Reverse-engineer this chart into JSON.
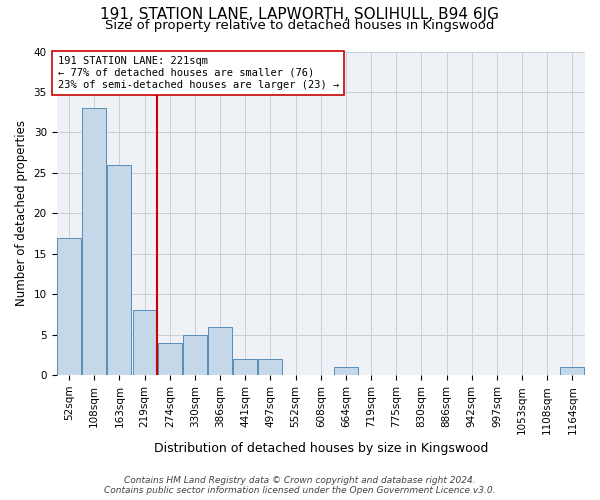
{
  "title": "191, STATION LANE, LAPWORTH, SOLIHULL, B94 6JG",
  "subtitle": "Size of property relative to detached houses in Kingswood",
  "xlabel": "Distribution of detached houses by size in Kingswood",
  "ylabel": "Number of detached properties",
  "categories": [
    "52sqm",
    "108sqm",
    "163sqm",
    "219sqm",
    "274sqm",
    "330sqm",
    "386sqm",
    "441sqm",
    "497sqm",
    "552sqm",
    "608sqm",
    "664sqm",
    "719sqm",
    "775sqm",
    "830sqm",
    "886sqm",
    "942sqm",
    "997sqm",
    "1053sqm",
    "1108sqm",
    "1164sqm"
  ],
  "values": [
    17,
    33,
    26,
    8,
    4,
    5,
    6,
    2,
    2,
    0,
    0,
    1,
    0,
    0,
    0,
    0,
    0,
    0,
    0,
    0,
    1
  ],
  "bar_color": "#c5d8ea",
  "bar_edge_color": "#5a8db5",
  "highlight_line_idx": 3,
  "annotation_title": "191 STATION LANE: 221sqm",
  "annotation_line1": "← 77% of detached houses are smaller (76)",
  "annotation_line2": "23% of semi-detached houses are larger (23) →",
  "annotation_box_color": "#ffffff",
  "annotation_box_edge_color": "#cc0000",
  "vline_color": "#cc0000",
  "ylim": [
    0,
    40
  ],
  "yticks": [
    0,
    5,
    10,
    15,
    20,
    25,
    30,
    35,
    40
  ],
  "grid_color": "#c8d0d8",
  "background_color": "#eef2f6",
  "footer_line1": "Contains HM Land Registry data © Crown copyright and database right 2024.",
  "footer_line2": "Contains public sector information licensed under the Open Government Licence v3.0.",
  "title_fontsize": 11,
  "subtitle_fontsize": 9.5,
  "xlabel_fontsize": 9,
  "ylabel_fontsize": 8.5,
  "tick_fontsize": 7.5,
  "footer_fontsize": 6.5,
  "annotation_fontsize": 7.5
}
